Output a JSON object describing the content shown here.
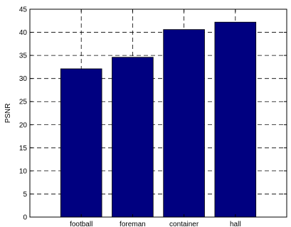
{
  "chart_data": {
    "type": "bar",
    "title": "",
    "xlabel": "",
    "ylabel": "PSNR",
    "categories": [
      "football",
      "foreman",
      "container",
      "hall"
    ],
    "values": [
      32.1,
      34.6,
      40.6,
      42.2
    ],
    "ylim": [
      0,
      45
    ],
    "yticks": [
      0,
      5,
      10,
      15,
      20,
      25,
      30,
      35,
      40,
      45
    ],
    "grid": true,
    "grid_style": "dashed",
    "bar_color": "#000080",
    "legend": "none"
  }
}
